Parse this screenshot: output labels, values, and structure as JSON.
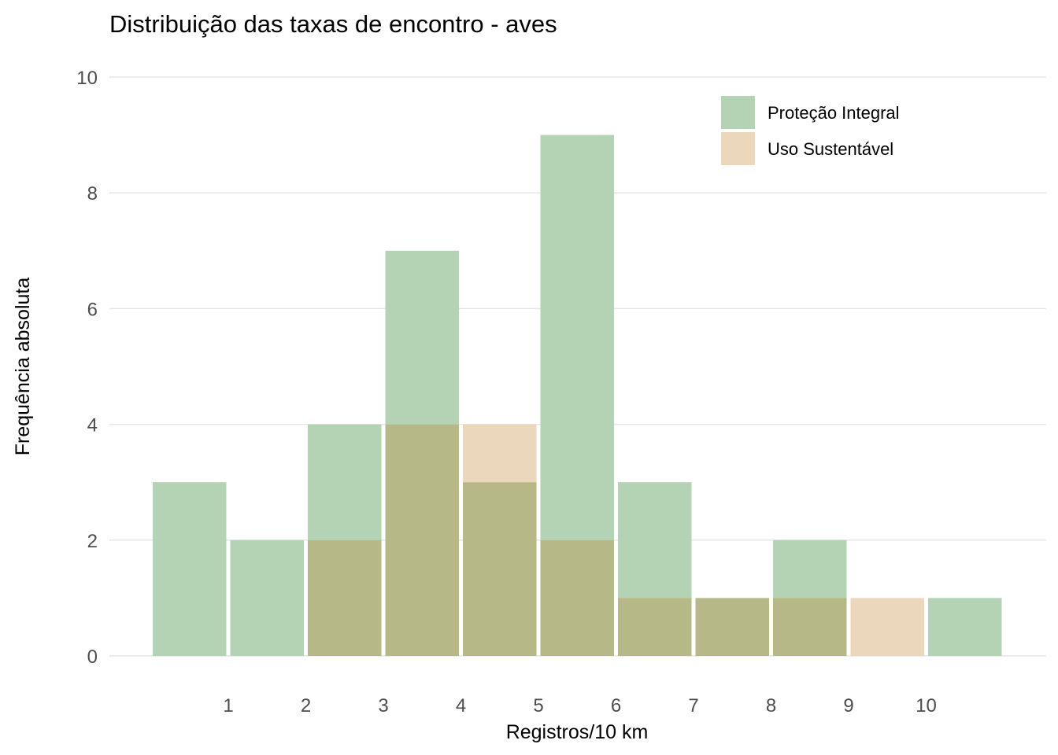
{
  "chart_data": {
    "type": "bar",
    "title": "Distribuição das taxas de encontro - aves",
    "xlabel": "Registros/10 km",
    "ylabel": "Frequência absoluta",
    "x_ticks": [
      "1",
      "2",
      "3",
      "4",
      "5",
      "6",
      "7",
      "8",
      "9",
      "10"
    ],
    "y_ticks": [
      "0",
      "2",
      "4",
      "6",
      "8",
      "10"
    ],
    "ylim": [
      0,
      10
    ],
    "xlim": [
      0,
      11
    ],
    "bin_width": 1,
    "grid": "horizontal",
    "legend_position": "top-right",
    "series": [
      {
        "name": "Proteção Integral",
        "color": "#b3d3b4",
        "bins": [
          0.5,
          1.5,
          2.5,
          3.5,
          4.5,
          5.5,
          6.5,
          7.5,
          8.5,
          9.5,
          10.5
        ],
        "values": [
          3,
          2,
          4,
          7,
          3,
          9,
          3,
          1,
          2,
          0,
          1
        ]
      },
      {
        "name": "Uso Sustentável",
        "color": "#ead7bc",
        "bins": [
          0.5,
          1.5,
          2.5,
          3.5,
          4.5,
          5.5,
          6.5,
          7.5,
          8.5,
          9.5,
          10.5
        ],
        "values": [
          0,
          0,
          2,
          4,
          4,
          2,
          1,
          1,
          1,
          1,
          0
        ]
      }
    ],
    "overlap_color": "#b6b887"
  }
}
